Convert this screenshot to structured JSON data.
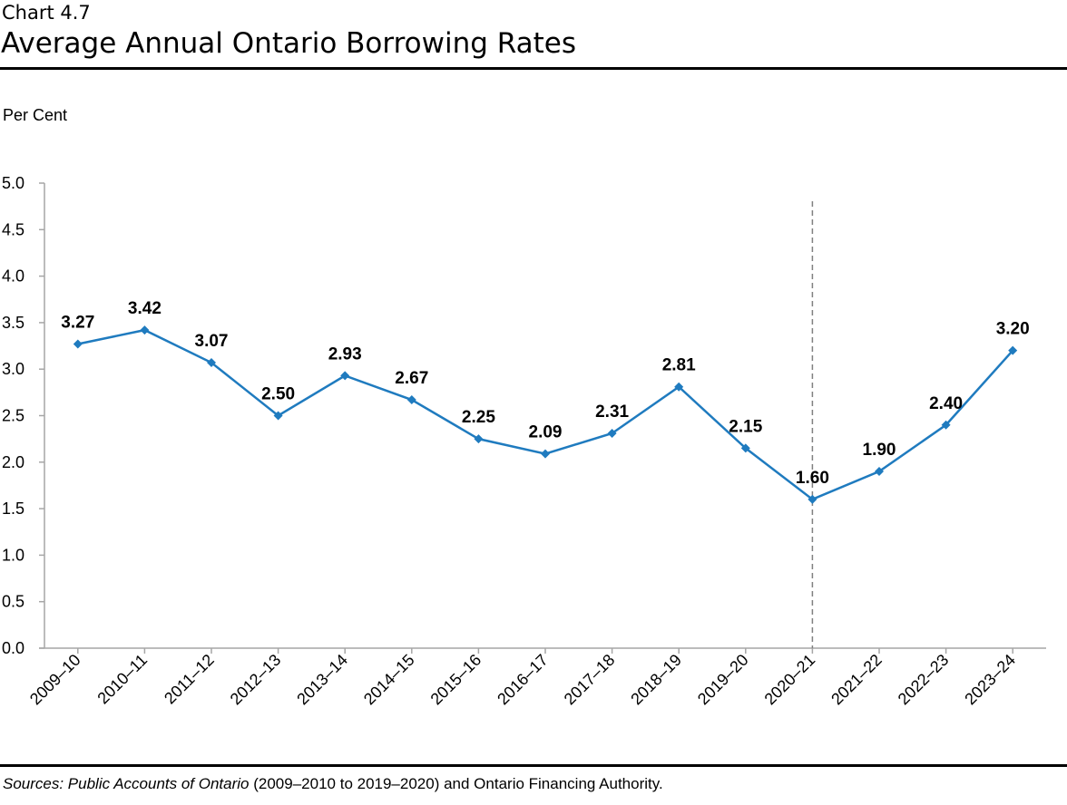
{
  "header": {
    "kicker": "Chart 4.7",
    "title": "Average Annual Ontario Borrowing Rates"
  },
  "footer": {
    "source_prefix": "Sources: Public Accounts of Ontario",
    "source_rest": " (2009–2010 to 2019–2020) and Ontario Financing Authority."
  },
  "chart_data": {
    "type": "line",
    "title": "Average Annual Ontario Borrowing Rates",
    "ylabel": "Per Cent",
    "xlabel": "",
    "ylim": [
      0,
      5.0
    ],
    "yticks": [
      "0.0",
      "0.5",
      "1.0",
      "1.5",
      "2.0",
      "2.5",
      "3.0",
      "3.5",
      "4.0",
      "4.5",
      "5.0"
    ],
    "categories": [
      "2009–10",
      "2010–11",
      "2011–12",
      "2012–13",
      "2013–14",
      "2014–15",
      "2015–16",
      "2016–17",
      "2017–18",
      "2018–19",
      "2019–20",
      "2020–21",
      "2021–22",
      "2022–23",
      "2023–24"
    ],
    "values": [
      3.27,
      3.42,
      3.07,
      2.5,
      2.93,
      2.67,
      2.25,
      2.09,
      2.31,
      2.81,
      2.15,
      1.6,
      1.9,
      2.4,
      3.2
    ],
    "data_labels": [
      "3.27",
      "3.42",
      "3.07",
      "2.50",
      "2.93",
      "2.67",
      "2.25",
      "2.09",
      "2.31",
      "2.81",
      "2.15",
      "1.60",
      "1.90",
      "2.40",
      "3.20"
    ],
    "marker": "diamond",
    "line_color": "#1F7BBF",
    "reference_line": {
      "category": "2020–21",
      "style": "dashed",
      "color": "#808080"
    },
    "grid": false,
    "legend": "none"
  }
}
